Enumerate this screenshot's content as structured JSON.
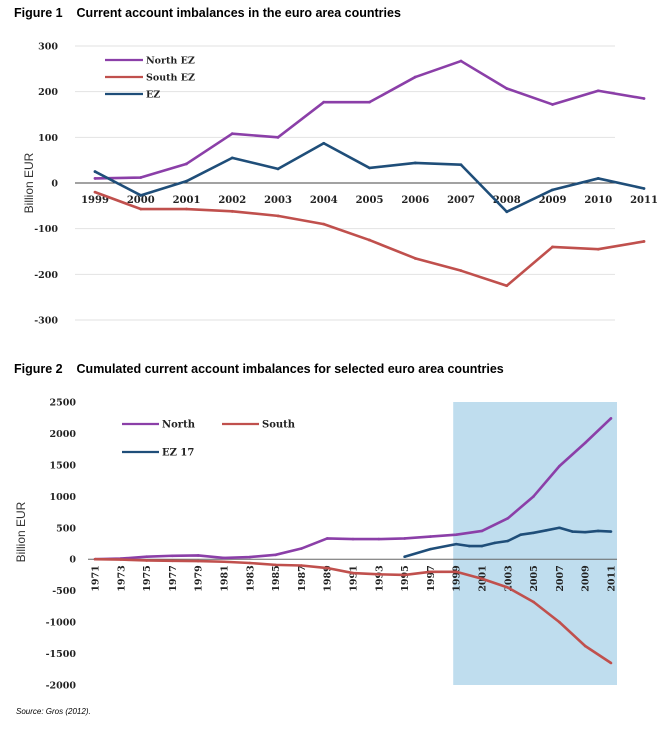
{
  "figures": {
    "fig1": {
      "label": "Figure 1",
      "title": "Current account imbalances in the euro area countries"
    },
    "fig2": {
      "label": "Figure 2",
      "title": "Cumulated current account imbalances for selected euro area countries"
    }
  },
  "source": "Source: Gros (2012).",
  "colors": {
    "north": "#8B3FA8",
    "south": "#C0504D",
    "ez": "#1F4E79",
    "shade": "#BFDDEE"
  },
  "chart_data": [
    {
      "type": "line",
      "title": "Current account imbalances in the euro area countries",
      "ylabel": "Billion EUR",
      "xlabel": "",
      "ylim": [
        -300,
        300
      ],
      "yticks": [
        300,
        200,
        100,
        0,
        -100,
        -200,
        -300
      ],
      "x": [
        "1999",
        "2000",
        "2001",
        "2002",
        "2003",
        "2004",
        "2005",
        "2006",
        "2007",
        "2008",
        "2009",
        "2010",
        "2011"
      ],
      "legend_position": "top-left",
      "grid": true,
      "series": [
        {
          "name": "North EZ",
          "color": "#8B3FA8",
          "values": [
            10,
            12,
            42,
            108,
            100,
            177,
            177,
            232,
            267,
            207,
            172,
            202,
            185
          ]
        },
        {
          "name": "South EZ",
          "color": "#C0504D",
          "values": [
            -20,
            -57,
            -57,
            -62,
            -72,
            -90,
            -125,
            -165,
            -192,
            -225,
            -140,
            -145,
            -128
          ]
        },
        {
          "name": "EZ",
          "color": "#1F4E79",
          "values": [
            25,
            -27,
            4,
            55,
            31,
            87,
            33,
            44,
            40,
            -63,
            -15,
            10,
            -12
          ]
        }
      ]
    },
    {
      "type": "line",
      "title": "Cumulated current account imbalances for selected euro area countries",
      "ylabel": "Billion EUR",
      "xlabel": "",
      "ylim": [
        -2000,
        2500
      ],
      "yticks": [
        2500,
        2000,
        1500,
        1000,
        500,
        0,
        -500,
        -1000,
        -1500,
        -2000
      ],
      "xlim": [
        1971,
        2011
      ],
      "xticks": [
        "1971",
        "1973",
        "1975",
        "1977",
        "1979",
        "1981",
        "1983",
        "1985",
        "1987",
        "1989",
        "1991",
        "1993",
        "1995",
        "1997",
        "1999",
        "2001",
        "2003",
        "2005",
        "2007",
        "2009",
        "2011"
      ],
      "shaded_region": [
        1999,
        2011
      ],
      "legend_position": "top-left",
      "series": [
        {
          "name": "North",
          "color": "#8B3FA8",
          "points": [
            [
              1971,
              0
            ],
            [
              1973,
              10
            ],
            [
              1975,
              40
            ],
            [
              1977,
              55
            ],
            [
              1979,
              60
            ],
            [
              1981,
              20
            ],
            [
              1983,
              35
            ],
            [
              1985,
              70
            ],
            [
              1987,
              170
            ],
            [
              1989,
              330
            ],
            [
              1991,
              320
            ],
            [
              1993,
              320
            ],
            [
              1995,
              330
            ],
            [
              1997,
              360
            ],
            [
              1999,
              390
            ],
            [
              2001,
              450
            ],
            [
              2003,
              650
            ],
            [
              2005,
              1000
            ],
            [
              2007,
              1480
            ],
            [
              2009,
              1850
            ],
            [
              2011,
              2240
            ]
          ]
        },
        {
          "name": "South",
          "color": "#C0504D",
          "points": [
            [
              1971,
              0
            ],
            [
              1973,
              -5
            ],
            [
              1975,
              -20
            ],
            [
              1977,
              -25
            ],
            [
              1979,
              -30
            ],
            [
              1981,
              -40
            ],
            [
              1983,
              -60
            ],
            [
              1985,
              -90
            ],
            [
              1987,
              -100
            ],
            [
              1989,
              -140
            ],
            [
              1991,
              -220
            ],
            [
              1993,
              -240
            ],
            [
              1995,
              -250
            ],
            [
              1997,
              -200
            ],
            [
              1999,
              -200
            ],
            [
              2001,
              -310
            ],
            [
              2003,
              -450
            ],
            [
              2005,
              -680
            ],
            [
              2007,
              -1000
            ],
            [
              2009,
              -1380
            ],
            [
              2011,
              -1650
            ]
          ]
        },
        {
          "name": "EZ 17",
          "color": "#1F4E79",
          "points": [
            [
              1995,
              40
            ],
            [
              1997,
              160
            ],
            [
              1999,
              240
            ],
            [
              2000,
              210
            ],
            [
              2001,
              210
            ],
            [
              2002,
              260
            ],
            [
              2003,
              290
            ],
            [
              2004,
              390
            ],
            [
              2005,
              420
            ],
            [
              2006,
              460
            ],
            [
              2007,
              500
            ],
            [
              2008,
              440
            ],
            [
              2009,
              430
            ],
            [
              2010,
              450
            ],
            [
              2011,
              440
            ]
          ]
        }
      ]
    }
  ]
}
